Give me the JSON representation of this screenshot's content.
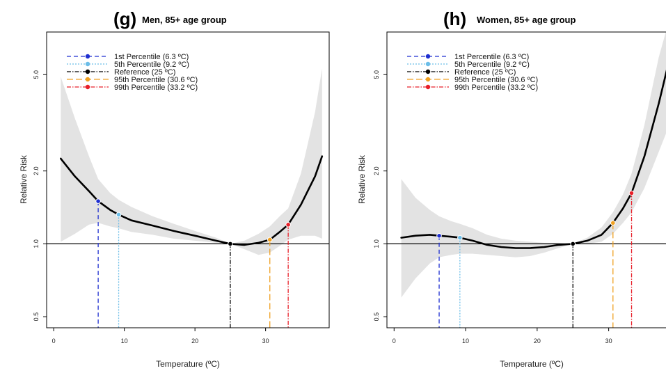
{
  "chart_data": [
    {
      "type": "line",
      "panel_label": "(g)",
      "title": "Men, 85+ age group",
      "xlabel": "Temperature (ºC)",
      "ylabel": "Relative Risk",
      "xlim": [
        -1,
        39
      ],
      "ylim": [
        0.45,
        7.5
      ],
      "y_scale": "log",
      "x_ticks": [
        0,
        10,
        20,
        30
      ],
      "x_tick_labels": [
        "0",
        "10",
        "20",
        "30"
      ],
      "y_ticks": [
        0.5,
        1.0,
        2.0,
        5.0
      ],
      "y_tick_labels": [
        "0.5",
        "1.0",
        "2.0",
        "5.0"
      ],
      "legend_position": "top-left",
      "legend": [
        {
          "label": "1st Percentile (6.3 ºC)",
          "x": 6.3,
          "color": "#1f2fd0",
          "dash": "6,4"
        },
        {
          "label": "5th Percentile (9.2 ºC)",
          "x": 9.2,
          "color": "#6bbde8",
          "dash": "2,2"
        },
        {
          "label": "Reference (25 ºC)",
          "x": 25,
          "color": "#000000",
          "dash": "6,2,1.5,2"
        },
        {
          "label": "95th Percentile (30.6 ºC)",
          "x": 30.6,
          "color": "#f0a020",
          "dash": "9,4"
        },
        {
          "label": "99th Percentile (33.2 ºC)",
          "x": 33.2,
          "color": "#e8202a",
          "dash": "6,2,1.5,2"
        }
      ],
      "curve": {
        "x": [
          1,
          3,
          5,
          6.3,
          8,
          9.2,
          11,
          14,
          17,
          20,
          23,
          25,
          27,
          29,
          30.6,
          32,
          33.2,
          35,
          37,
          38
        ],
        "y": [
          2.25,
          1.9,
          1.65,
          1.5,
          1.38,
          1.32,
          1.25,
          1.19,
          1.13,
          1.08,
          1.03,
          1.0,
          0.99,
          1.01,
          1.04,
          1.12,
          1.2,
          1.45,
          1.9,
          2.3
        ]
      },
      "ci_lower": [
        1.02,
        1.1,
        1.2,
        1.22,
        1.18,
        1.16,
        1.12,
        1.09,
        1.05,
        1.03,
        1.01,
        1.0,
        0.95,
        0.9,
        0.92,
        0.98,
        1.04,
        1.08,
        1.08,
        1.05
      ],
      "ci_upper": [
        4.9,
        3.3,
        2.3,
        1.85,
        1.62,
        1.52,
        1.42,
        1.3,
        1.21,
        1.13,
        1.06,
        1.0,
        1.03,
        1.1,
        1.18,
        1.3,
        1.4,
        1.95,
        3.5,
        5.3
      ],
      "points": [
        {
          "x": 6.3,
          "y": 1.5,
          "color": "#1f2fd0"
        },
        {
          "x": 9.2,
          "y": 1.32,
          "color": "#6bbde8"
        },
        {
          "x": 25,
          "y": 1.0,
          "color": "#000000"
        },
        {
          "x": 30.6,
          "y": 1.04,
          "color": "#f0a020"
        },
        {
          "x": 33.2,
          "y": 1.2,
          "color": "#e8202a"
        }
      ],
      "reference_line_y": 1.0
    },
    {
      "type": "line",
      "panel_label": "(h)",
      "title": "Women, 85+ age group",
      "xlabel": "Temperature (ºC)",
      "ylabel": "Relative Risk",
      "xlim": [
        -1,
        38.5
      ],
      "ylim": [
        0.45,
        7.5
      ],
      "y_scale": "log",
      "x_ticks": [
        0,
        10,
        20,
        30
      ],
      "x_tick_labels": [
        "0",
        "10",
        "20",
        "30"
      ],
      "y_ticks": [
        0.5,
        1.0,
        2.0,
        5.0
      ],
      "y_tick_labels": [
        "0.5",
        "1.0",
        "2.0",
        "5.0"
      ],
      "legend_position": "top-left",
      "legend": [
        {
          "label": "1st Percentile (6.3 ºC)",
          "x": 6.3,
          "color": "#1f2fd0",
          "dash": "6,4"
        },
        {
          "label": "5th Percentile (9.2 ºC)",
          "x": 9.2,
          "color": "#6bbde8",
          "dash": "2,2"
        },
        {
          "label": "Reference (25 ºC)",
          "x": 25,
          "color": "#000000",
          "dash": "6,2,1.5,2"
        },
        {
          "label": "95th Percentile (30.6 ºC)",
          "x": 30.6,
          "color": "#f0a020",
          "dash": "9,4"
        },
        {
          "label": "99th Percentile (33.2 ºC)",
          "x": 33.2,
          "color": "#e8202a",
          "dash": "6,2,1.5,2"
        }
      ],
      "curve": {
        "x": [
          1,
          3,
          5,
          6.3,
          8,
          9.2,
          11,
          13,
          15,
          17,
          19,
          21,
          23,
          25,
          27,
          29,
          30.6,
          32,
          33.2,
          35,
          37,
          38.5
        ],
        "y": [
          1.06,
          1.08,
          1.09,
          1.08,
          1.07,
          1.06,
          1.03,
          0.99,
          0.97,
          0.96,
          0.96,
          0.97,
          0.99,
          1.0,
          1.03,
          1.09,
          1.22,
          1.4,
          1.62,
          2.3,
          3.8,
          5.8
        ]
      },
      "ci_lower": [
        0.6,
        0.72,
        0.83,
        0.88,
        0.9,
        0.91,
        0.91,
        0.9,
        0.89,
        0.88,
        0.89,
        0.92,
        0.96,
        1.0,
        1.0,
        1.02,
        1.1,
        1.22,
        1.35,
        1.7,
        2.4,
        3.1
      ],
      "ci_upper": [
        1.85,
        1.55,
        1.38,
        1.3,
        1.24,
        1.21,
        1.16,
        1.09,
        1.05,
        1.03,
        1.02,
        1.01,
        1.01,
        1.0,
        1.06,
        1.17,
        1.35,
        1.6,
        1.95,
        3.1,
        5.9,
        8.5
      ],
      "points": [
        {
          "x": 6.3,
          "y": 1.08,
          "color": "#1f2fd0"
        },
        {
          "x": 9.2,
          "y": 1.06,
          "color": "#6bbde8"
        },
        {
          "x": 25,
          "y": 1.0,
          "color": "#000000"
        },
        {
          "x": 30.6,
          "y": 1.22,
          "color": "#f0a020"
        },
        {
          "x": 33.2,
          "y": 1.62,
          "color": "#e8202a"
        }
      ],
      "reference_line_y": 1.0
    }
  ]
}
